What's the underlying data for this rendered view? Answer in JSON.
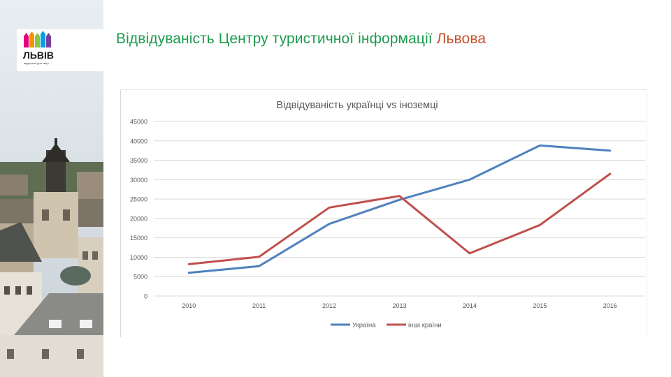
{
  "page": {
    "title_main": "Відвідуваність Центру туристичної інформації",
    "title_accent": "Львова"
  },
  "logo": {
    "text": "ЛЬВІВ",
    "tagline": "відкритий для світу",
    "colors": [
      "#e6007e",
      "#f39200",
      "#8cc63f",
      "#00a0e3",
      "#7c3f98"
    ]
  },
  "colors": {
    "title": "#1e9a4f",
    "accent": "#c8502c"
  },
  "chart_data": {
    "type": "line",
    "title": "Відвідуваність українці vs іноземці",
    "categories": [
      "2010",
      "2011",
      "2012",
      "2013",
      "2014",
      "2015",
      "2016"
    ],
    "ylim": [
      0,
      45000
    ],
    "yticks": [
      0,
      5000,
      10000,
      15000,
      20000,
      25000,
      30000,
      35000,
      40000,
      45000
    ],
    "grid": true,
    "legend": "bottom",
    "series": [
      {
        "name": "Україна",
        "color": "#4f81bd",
        "values": [
          6000,
          7700,
          18600,
          24800,
          30000,
          38800,
          37500
        ]
      },
      {
        "name": "інші країни",
        "color": "#c0504d",
        "values": [
          8200,
          10100,
          22800,
          25800,
          11000,
          18300,
          31500
        ]
      }
    ]
  }
}
